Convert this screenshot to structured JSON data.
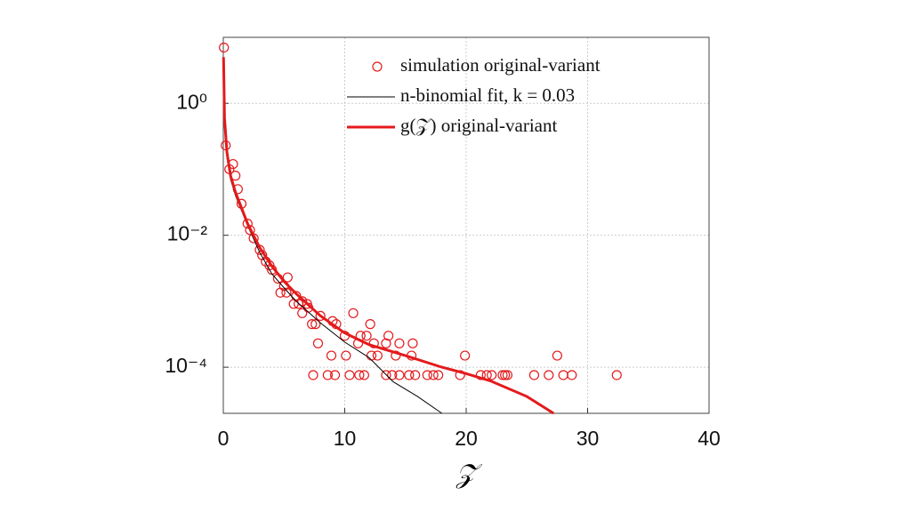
{
  "chart_data": {
    "type": "scatter",
    "xlabel": "𝒵",
    "xlim": [
      0,
      40
    ],
    "xticks": [
      0,
      10,
      20,
      30,
      40
    ],
    "ylim": [
      2e-05,
      10
    ],
    "yscale": "log",
    "yticks": [
      {
        "value": 1,
        "label": "10⁰"
      },
      {
        "value": 0.01,
        "label": "10⁻²"
      },
      {
        "value": 0.0001,
        "label": "10⁻⁴"
      }
    ],
    "grid": true,
    "legend": "upper right",
    "series": [
      {
        "name": "simulation original-variant",
        "color": "#e41a1c",
        "type": "scatter",
        "x": [
          0.05,
          0.2,
          0.5,
          0.8,
          1,
          1.2,
          1.5,
          2,
          2.2,
          2.5,
          3,
          3.2,
          3.5,
          3.8,
          4,
          4.5,
          5,
          6,
          6.5,
          7,
          8,
          9,
          7.4,
          8.6,
          9.2,
          10.4,
          11.2,
          11.6,
          13.4,
          13.9,
          14.5,
          15.3,
          15.8,
          16.8,
          17.3,
          17.7,
          19.5,
          21.2,
          21.7,
          22.1,
          23.0,
          23.2,
          23.4,
          25.6,
          26.8,
          28.0,
          28.7,
          32.4,
          8.9,
          10.1,
          12.2,
          12.7,
          14.2,
          15.5,
          19.9,
          27.5,
          7.8,
          11.1,
          12.4,
          13.4,
          14.5,
          15.6,
          10.0,
          11.3,
          11.8,
          13.6,
          7.3,
          7.6,
          9.3,
          12.1,
          10.7,
          6.5,
          5.8,
          6.2,
          6.9,
          4.7,
          5.2,
          5.3
        ],
        "values": [
          7,
          0.23,
          0.1,
          0.12,
          0.08,
          0.05,
          0.03,
          0.015,
          0.012,
          0.009,
          0.006,
          0.005,
          0.004,
          0.0035,
          0.003,
          0.0022,
          0.0017,
          0.0012,
          0.001,
          0.0008,
          0.0006,
          0.0005,
          7.6e-05,
          7.6e-05,
          7.6e-05,
          7.6e-05,
          7.6e-05,
          7.6e-05,
          7.6e-05,
          7.6e-05,
          7.6e-05,
          7.6e-05,
          7.6e-05,
          7.6e-05,
          7.6e-05,
          7.6e-05,
          7.6e-05,
          7.6e-05,
          7.6e-05,
          7.6e-05,
          7.6e-05,
          7.6e-05,
          7.6e-05,
          7.6e-05,
          7.6e-05,
          7.6e-05,
          7.6e-05,
          7.6e-05,
          0.00015,
          0.00015,
          0.00015,
          0.00015,
          0.00015,
          0.00015,
          0.00015,
          0.00015,
          0.00023,
          0.00023,
          0.00023,
          0.00023,
          0.00023,
          0.00023,
          0.0003,
          0.0003,
          0.0003,
          0.0003,
          0.00045,
          0.00045,
          0.00045,
          0.00045,
          0.00066,
          0.00066,
          0.00091,
          0.00091,
          0.00091,
          0.00135,
          0.00135,
          0.0023
        ]
      },
      {
        "name": "n-binomial fit, k = 0.03",
        "color": "#000000",
        "type": "line",
        "x": [
          0.02,
          0.1,
          0.3,
          0.6,
          1,
          2,
          3,
          4,
          5,
          6,
          8,
          10,
          12,
          14,
          16,
          18
        ],
        "values": [
          5,
          0.5,
          0.15,
          0.07,
          0.04,
          0.014,
          0.0055,
          0.0026,
          0.0016,
          0.001,
          0.00047,
          0.00024,
          0.00014,
          6e-05,
          3.6e-05,
          2e-05
        ]
      },
      {
        "name": "g(𝒵) original-variant",
        "color": "#e41a1c",
        "type": "line",
        "x": [
          0.02,
          0.1,
          0.3,
          0.6,
          1,
          2,
          3,
          4,
          5,
          6,
          8,
          10,
          12,
          15,
          18,
          20,
          22,
          25,
          27.2
        ],
        "values": [
          5,
          0.6,
          0.18,
          0.08,
          0.045,
          0.015,
          0.0065,
          0.0034,
          0.002,
          0.0013,
          0.0006,
          0.00033,
          0.00022,
          0.00015,
          0.0001,
          8e-05,
          6.2e-05,
          3.6e-05,
          2e-05
        ]
      }
    ]
  }
}
